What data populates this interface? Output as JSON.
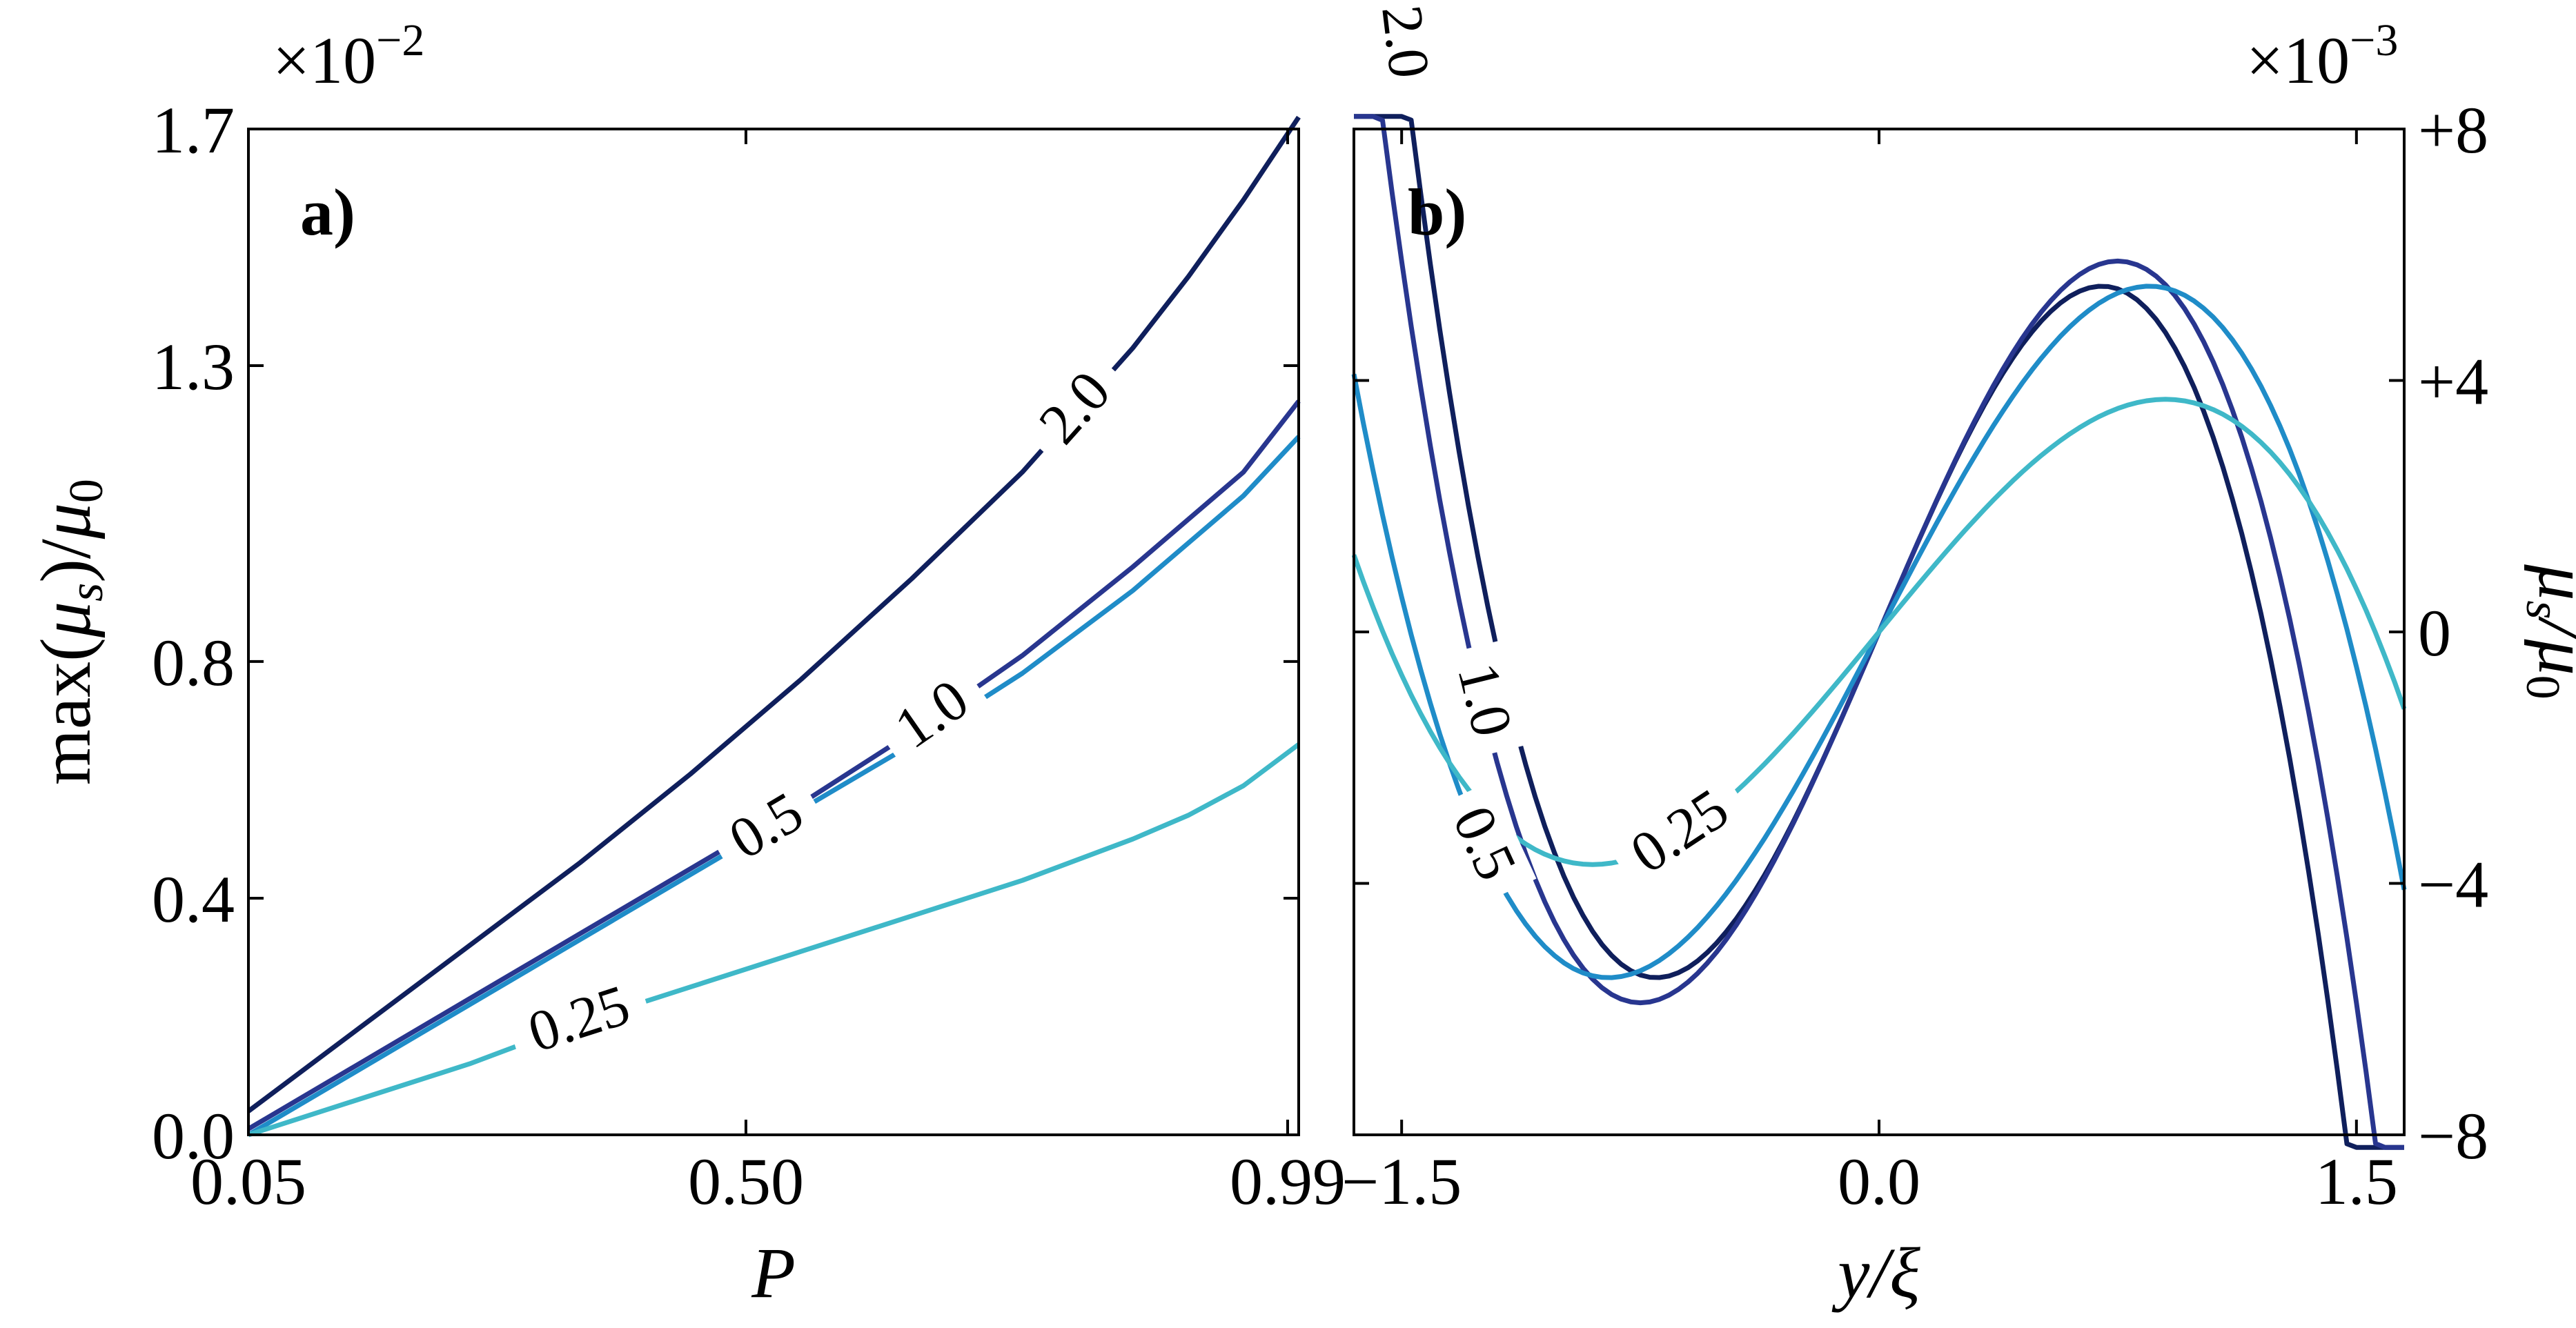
{
  "chart_data": [
    {
      "panel_label": "a)",
      "type": "line",
      "xlabel": "P",
      "ylabel": "max(μ_s)/μ_0",
      "ylabel_main": "max(",
      "ylabel_mu": "μ",
      "ylabel_s": "s",
      "ylabel_close": ")/",
      "ylabel_zero": "0",
      "scale_label": "×10",
      "scale_exp": "−2",
      "xlim": [
        0.05,
        1.0
      ],
      "ylim": [
        0.0,
        1.7
      ],
      "xticks": [
        0.05,
        0.5,
        0.99
      ],
      "xtick_labels": [
        "0.05",
        "0.50",
        "0.99"
      ],
      "yticks": [
        0.0,
        0.4,
        0.8,
        1.3,
        1.7
      ],
      "ytick_labels": [
        "0.0",
        "0.4",
        "0.8",
        "1.3",
        "1.7"
      ],
      "series": [
        {
          "name": "2.0",
          "color": "#0f1f5c",
          "x": [
            0.05,
            0.15,
            0.25,
            0.35,
            0.45,
            0.55,
            0.65,
            0.75,
            0.85,
            0.9,
            0.95,
            1.0
          ],
          "y": [
            0.04,
            0.18,
            0.32,
            0.46,
            0.61,
            0.77,
            0.94,
            1.12,
            1.33,
            1.45,
            1.58,
            1.72
          ],
          "label_at": 0.8
        },
        {
          "name": "1.0",
          "color": "#28368f",
          "x": [
            0.05,
            0.15,
            0.25,
            0.35,
            0.45,
            0.55,
            0.65,
            0.75,
            0.85,
            0.9,
            0.95,
            1.0
          ],
          "y": [
            0.01,
            0.12,
            0.23,
            0.34,
            0.45,
            0.56,
            0.68,
            0.81,
            0.96,
            1.04,
            1.12,
            1.24
          ],
          "label_at": 0.67
        },
        {
          "name": "0.5",
          "color": "#1f8cc8",
          "x": [
            0.05,
            0.15,
            0.25,
            0.35,
            0.45,
            0.55,
            0.65,
            0.75,
            0.85,
            0.9,
            0.95,
            1.0
          ],
          "y": [
            0.0,
            0.11,
            0.22,
            0.33,
            0.44,
            0.55,
            0.66,
            0.78,
            0.92,
            1.0,
            1.08,
            1.18
          ],
          "label_at": 0.52
        },
        {
          "name": "0.25",
          "color": "#3fb8c8",
          "x": [
            0.05,
            0.15,
            0.25,
            0.35,
            0.45,
            0.55,
            0.65,
            0.75,
            0.85,
            0.9,
            0.95,
            1.0
          ],
          "y": [
            0.0,
            0.06,
            0.12,
            0.19,
            0.25,
            0.31,
            0.37,
            0.43,
            0.5,
            0.54,
            0.59,
            0.66
          ],
          "label_at": 0.35
        }
      ]
    },
    {
      "panel_label": "b)",
      "type": "line",
      "xlabel": "y/ξ",
      "xlabel_y": "y",
      "xlabel_xi": "/ξ",
      "ylabel": "μ_s/μ_0",
      "ylabel_mu1": "μ",
      "ylabel_s": "s",
      "ylabel_mu2": "/μ",
      "ylabel_zero": "0",
      "scale_label": "×10",
      "scale_exp": "−3",
      "xlim": [
        -1.65,
        1.65
      ],
      "ylim": [
        -8,
        8
      ],
      "xticks": [
        -1.5,
        0.0,
        1.5
      ],
      "xtick_labels": [
        "−1.5",
        "0.0",
        "1.5"
      ],
      "yticks": [
        8,
        4,
        0,
        -4,
        -8
      ],
      "ytick_labels": [
        "+8",
        "+4",
        "0",
        "−4",
        "−8"
      ],
      "series": [
        {
          "name": "2.0",
          "color": "#0f1f5c",
          "amplitude": 5.5,
          "xmax": 0.7,
          "label_x": -1.5
        },
        {
          "name": "1.0",
          "color": "#28368f",
          "amplitude": 5.9,
          "xmax": 0.75,
          "label_x": -1.25
        },
        {
          "name": "0.5",
          "color": "#1f8cc8",
          "amplitude": 5.5,
          "xmax": 0.85,
          "label_x": -1.25
        },
        {
          "name": "0.25",
          "color": "#3fb8c8",
          "amplitude": 3.7,
          "xmax": 0.9,
          "label_x": -0.62
        }
      ]
    }
  ]
}
